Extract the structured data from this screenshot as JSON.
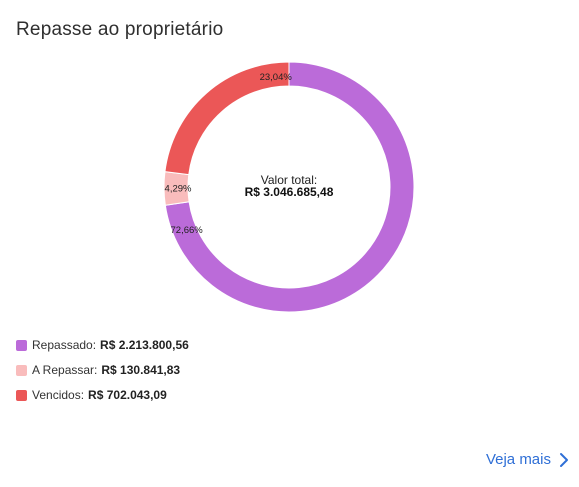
{
  "card": {
    "title": "Repasse ao proprietário"
  },
  "chart_data": {
    "type": "pie",
    "variant": "donut",
    "title": "",
    "center": {
      "label": "Valor total:",
      "value": "R$ 3.046.685,48"
    },
    "series": [
      {
        "name": "Repassado",
        "value": 2213800.56,
        "value_text": "R$ 2.213.800,56",
        "percent": 72.66,
        "percent_text": "72,66%",
        "color": "#bb6bd9"
      },
      {
        "name": "A Repassar",
        "value": 130841.83,
        "value_text": "R$ 130.841,83",
        "percent": 4.29,
        "percent_text": "4,29%",
        "color": "#f9bcbc"
      },
      {
        "name": "Vencidos",
        "value": 702043.09,
        "value_text": "R$ 702.043,09",
        "percent": 23.04,
        "percent_text": "23,04%",
        "color": "#eb5757"
      }
    ],
    "start_angle_deg": 0,
    "direction": "clockwise",
    "legend_placement": "bottom-left"
  },
  "legend": {
    "items": [
      {
        "label": "Repassado:",
        "value": "R$ 2.213.800,56"
      },
      {
        "label": "A Repassar:",
        "value": "R$ 130.841,83"
      },
      {
        "label": "Vencidos:",
        "value": "R$ 702.043,09"
      }
    ]
  },
  "footer": {
    "see_more": "Veja mais"
  },
  "colors": {
    "link": "#2f6fd6"
  },
  "icons": {
    "see_more": "chevron-right-icon"
  }
}
